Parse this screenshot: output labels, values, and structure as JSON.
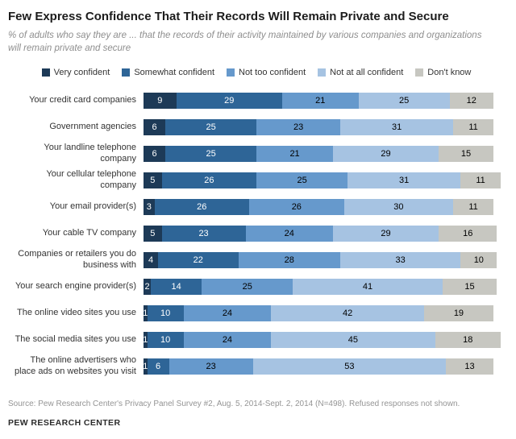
{
  "title": "Few Express Confidence That Their Records Will Remain Private and Secure",
  "subtitle": "% of adults who say they are ... that the records of their activity maintained by various companies and organizations will remain private and secure",
  "legend": [
    "Very confident",
    "Somewhat confident",
    "Not too confident",
    "Not at all confident",
    "Don't know"
  ],
  "colors": [
    "#1d3a57",
    "#2e6597",
    "#6699cc",
    "#a6c3e2",
    "#c7c7c1"
  ],
  "text_colors": [
    "#ffffff",
    "#ffffff",
    "#000000",
    "#000000",
    "#000000"
  ],
  "chart_data": {
    "type": "bar",
    "stacked": true,
    "orientation": "horizontal",
    "title": "Few Express Confidence That Their Records Will Remain Private and Secure",
    "xlabel": "",
    "ylabel": "",
    "xlim": [
      0,
      100
    ],
    "grid": false,
    "legend_position": "top",
    "categories": [
      "Your credit card companies",
      "Government agencies",
      "Your landline telephone company",
      "Your cellular telephone company",
      "Your email provider(s)",
      "Your cable TV company",
      "Companies or retailers you do business with",
      "Your search engine provider(s)",
      "The online video sites you use",
      "The social media sites you use",
      "The online advertisers who place ads on websites you visit"
    ],
    "series": [
      {
        "name": "Very confident",
        "values": [
          9,
          6,
          6,
          5,
          3,
          5,
          4,
          2,
          1,
          1,
          1
        ]
      },
      {
        "name": "Somewhat confident",
        "values": [
          29,
          25,
          25,
          26,
          26,
          23,
          22,
          14,
          10,
          10,
          6
        ]
      },
      {
        "name": "Not too confident",
        "values": [
          21,
          23,
          21,
          25,
          26,
          24,
          28,
          25,
          24,
          24,
          23
        ]
      },
      {
        "name": "Not at all confident",
        "values": [
          25,
          31,
          29,
          31,
          30,
          29,
          33,
          41,
          42,
          45,
          53
        ]
      },
      {
        "name": "Don't know",
        "values": [
          12,
          11,
          15,
          11,
          11,
          16,
          10,
          15,
          19,
          18,
          13
        ]
      }
    ]
  },
  "source": "Source: Pew Research Center's Privacy Panel Survey #2, Aug. 5, 2014-Sept. 2, 2014 (N=498).  Refused responses not shown.",
  "footer": "PEW RESEARCH CENTER"
}
